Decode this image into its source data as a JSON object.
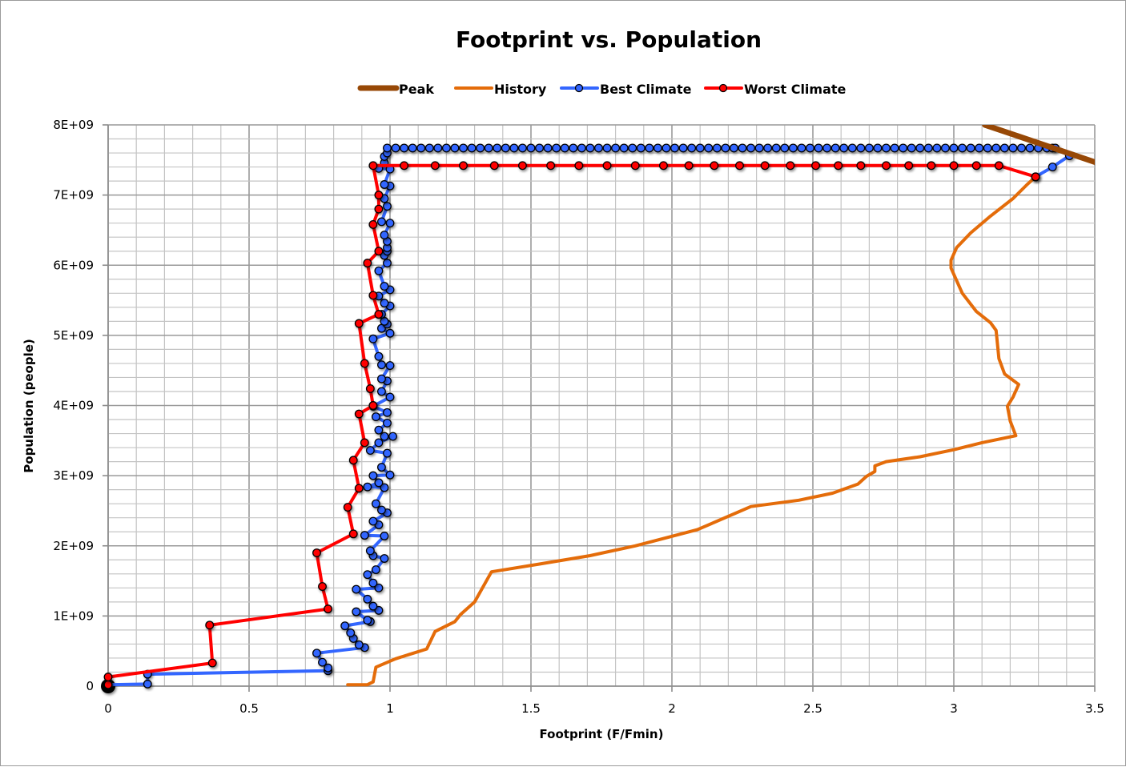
{
  "chart_data": {
    "type": "line",
    "title": "Footprint vs. Population",
    "xlabel": "Footprint (F/Fmin)",
    "ylabel": "Population (people)",
    "xlim": [
      0,
      3.5
    ],
    "ylim": [
      0,
      8000000000
    ],
    "x_ticks": [
      "0",
      "0.5",
      "1",
      "1.5",
      "2",
      "2.5",
      "3",
      "3.5"
    ],
    "y_ticks": [
      "0",
      "1E+09",
      "2E+09",
      "3E+09",
      "4E+09",
      "5E+09",
      "6E+09",
      "7E+09",
      "8E+09"
    ],
    "grid": true,
    "legend_position": "top",
    "colors": {
      "peak": "#974806",
      "history": "#E46C0A",
      "best": "#3366FF",
      "worst": "#FF0000",
      "grid_major": "#999999",
      "grid_minor": "#c4c4c4"
    },
    "series": [
      {
        "name": "Peak",
        "key": "peak",
        "marker": false,
        "points": [
          [
            3.11,
            8000000000.0
          ],
          [
            3.5,
            7470000000.0
          ]
        ]
      },
      {
        "name": "History",
        "key": "history",
        "marker": false,
        "points": [
          [
            0.85,
            20000000.0
          ],
          [
            0.92,
            20000000.0
          ],
          [
            0.94,
            60000000.0
          ],
          [
            0.95,
            270000000.0
          ],
          [
            1.02,
            390000000.0
          ],
          [
            1.13,
            530000000.0
          ],
          [
            1.16,
            780000000.0
          ],
          [
            1.23,
            920000000.0
          ],
          [
            1.25,
            1020000000.0
          ],
          [
            1.3,
            1200000000.0
          ],
          [
            1.36,
            1630000000.0
          ],
          [
            1.53,
            1740000000.0
          ],
          [
            1.71,
            1860000000.0
          ],
          [
            1.87,
            2000000000.0
          ],
          [
            2.09,
            2230000000.0
          ],
          [
            2.28,
            2560000000.0
          ],
          [
            2.45,
            2650000000.0
          ],
          [
            2.57,
            2750000000.0
          ],
          [
            2.66,
            2880000000.0
          ],
          [
            2.69,
            2990000000.0
          ],
          [
            2.72,
            3060000000.0
          ],
          [
            2.72,
            3140000000.0
          ],
          [
            2.76,
            3200000000.0
          ],
          [
            2.88,
            3270000000.0
          ],
          [
            3.0,
            3370000000.0
          ],
          [
            3.1,
            3470000000.0
          ],
          [
            3.22,
            3570000000.0
          ],
          [
            3.2,
            3780000000.0
          ],
          [
            3.19,
            3990000000.0
          ],
          [
            3.21,
            4120000000.0
          ],
          [
            3.23,
            4300000000.0
          ],
          [
            3.18,
            4450000000.0
          ],
          [
            3.16,
            4670000000.0
          ],
          [
            3.15,
            5070000000.0
          ],
          [
            3.13,
            5180000000.0
          ],
          [
            3.08,
            5340000000.0
          ],
          [
            3.03,
            5600000000.0
          ],
          [
            2.99,
            5960000000.0
          ],
          [
            2.99,
            6070000000.0
          ],
          [
            3.01,
            6250000000.0
          ],
          [
            3.06,
            6460000000.0
          ],
          [
            3.13,
            6700000000.0
          ],
          [
            3.21,
            6950000000.0
          ],
          [
            3.26,
            7150000000.0
          ],
          [
            3.29,
            7260000000.0
          ]
        ]
      },
      {
        "name": "Best Climate",
        "key": "best",
        "marker": true,
        "points": [
          [
            0.0,
            20000000.0
          ],
          [
            0.14,
            30000000.0
          ],
          [
            0.14,
            170000000.0
          ],
          [
            0.78,
            220000000.0
          ],
          [
            0.78,
            260000000.0
          ],
          [
            0.76,
            340000000.0
          ],
          [
            0.74,
            470000000.0
          ],
          [
            0.91,
            550000000.0
          ],
          [
            0.89,
            590000000.0
          ],
          [
            0.87,
            680000000.0
          ],
          [
            0.86,
            760000000.0
          ],
          [
            0.84,
            860000000.0
          ],
          [
            0.93,
            920000000.0
          ],
          [
            0.92,
            940000000.0
          ],
          [
            0.88,
            1060000000.0
          ],
          [
            0.96,
            1080000000.0
          ],
          [
            0.94,
            1140000000.0
          ],
          [
            0.92,
            1240000000.0
          ],
          [
            0.88,
            1380000000.0
          ],
          [
            0.96,
            1400000000.0
          ],
          [
            0.94,
            1470000000.0
          ],
          [
            0.92,
            1590000000.0
          ],
          [
            0.95,
            1660000000.0
          ],
          [
            0.98,
            1820000000.0
          ],
          [
            0.94,
            1860000000.0
          ],
          [
            0.93,
            1930000000.0
          ],
          [
            0.98,
            2140000000.0
          ],
          [
            0.91,
            2150000000.0
          ],
          [
            0.96,
            2300000000.0
          ],
          [
            0.94,
            2350000000.0
          ],
          [
            0.99,
            2470000000.0
          ],
          [
            0.97,
            2510000000.0
          ],
          [
            0.95,
            2600000000.0
          ],
          [
            0.98,
            2830000000.0
          ],
          [
            0.92,
            2840000000.0
          ],
          [
            0.96,
            2900000000.0
          ],
          [
            0.94,
            3000000000.0
          ],
          [
            1.0,
            3010000000.0
          ],
          [
            0.97,
            3120000000.0
          ],
          [
            0.99,
            3320000000.0
          ],
          [
            0.93,
            3360000000.0
          ],
          [
            0.96,
            3470000000.0
          ],
          [
            1.01,
            3560000000.0
          ],
          [
            0.98,
            3560000000.0
          ],
          [
            0.96,
            3650000000.0
          ],
          [
            0.99,
            3750000000.0
          ],
          [
            0.95,
            3840000000.0
          ],
          [
            0.99,
            3900000000.0
          ],
          [
            0.94,
            3990000000.0
          ],
          [
            1.0,
            4120000000.0
          ],
          [
            0.97,
            4200000000.0
          ],
          [
            0.99,
            4350000000.0
          ],
          [
            0.97,
            4380000000.0
          ],
          [
            1.0,
            4570000000.0
          ],
          [
            0.97,
            4580000000.0
          ],
          [
            0.96,
            4700000000.0
          ],
          [
            0.94,
            4950000000.0
          ],
          [
            1.0,
            5030000000.0
          ],
          [
            0.97,
            5100000000.0
          ],
          [
            0.99,
            5160000000.0
          ],
          [
            0.98,
            5200000000.0
          ],
          [
            0.97,
            5300000000.0
          ],
          [
            1.0,
            5420000000.0
          ],
          [
            0.98,
            5460000000.0
          ],
          [
            0.96,
            5560000000.0
          ],
          [
            1.0,
            5650000000.0
          ],
          [
            0.98,
            5700000000.0
          ],
          [
            0.96,
            5920000000.0
          ],
          [
            0.99,
            6030000000.0
          ],
          [
            0.98,
            6140000000.0
          ],
          [
            0.99,
            6200000000.0
          ],
          [
            0.99,
            6250000000.0
          ],
          [
            0.99,
            6340000000.0
          ],
          [
            0.98,
            6430000000.0
          ],
          [
            1.0,
            6600000000.0
          ],
          [
            0.97,
            6620000000.0
          ],
          [
            0.99,
            6840000000.0
          ],
          [
            0.98,
            6950000000.0
          ],
          [
            1.0,
            7130000000.0
          ],
          [
            0.98,
            7150000000.0
          ],
          [
            1.0,
            7370000000.0
          ],
          [
            0.96,
            7380000000.0
          ],
          [
            0.98,
            7460000000.0
          ],
          [
            0.98,
            7550000000.0
          ],
          [
            0.99,
            7600000000.0
          ],
          [
            0.99,
            7670000000.0
          ],
          [
            1.02,
            7670000000.0
          ],
          [
            1.05,
            7670000000.0
          ],
          [
            1.08,
            7670000000.0
          ],
          [
            1.11,
            7670000000.0
          ],
          [
            1.14,
            7670000000.0
          ],
          [
            1.17,
            7670000000.0
          ],
          [
            1.2,
            7670000000.0
          ],
          [
            1.23,
            7670000000.0
          ],
          [
            1.26,
            7670000000.0
          ],
          [
            1.29,
            7670000000.0
          ],
          [
            1.32,
            7670000000.0
          ],
          [
            1.35,
            7670000000.0
          ],
          [
            1.38,
            7670000000.0
          ],
          [
            1.41,
            7670000000.0
          ],
          [
            1.44,
            7670000000.0
          ],
          [
            1.47,
            7670000000.0
          ],
          [
            1.5,
            7670000000.0
          ],
          [
            1.53,
            7670000000.0
          ],
          [
            1.56,
            7670000000.0
          ],
          [
            1.59,
            7670000000.0
          ],
          [
            1.62,
            7670000000.0
          ],
          [
            1.65,
            7670000000.0
          ],
          [
            1.68,
            7670000000.0
          ],
          [
            1.71,
            7670000000.0
          ],
          [
            1.74,
            7670000000.0
          ],
          [
            1.77,
            7670000000.0
          ],
          [
            1.8,
            7670000000.0
          ],
          [
            1.83,
            7670000000.0
          ],
          [
            1.86,
            7670000000.0
          ],
          [
            1.89,
            7670000000.0
          ],
          [
            1.92,
            7670000000.0
          ],
          [
            1.95,
            7670000000.0
          ],
          [
            1.98,
            7670000000.0
          ],
          [
            2.01,
            7670000000.0
          ],
          [
            2.04,
            7670000000.0
          ],
          [
            2.07,
            7670000000.0
          ],
          [
            2.1,
            7670000000.0
          ],
          [
            2.13,
            7670000000.0
          ],
          [
            2.16,
            7670000000.0
          ],
          [
            2.19,
            7670000000.0
          ],
          [
            2.22,
            7670000000.0
          ],
          [
            2.25,
            7670000000.0
          ],
          [
            2.28,
            7670000000.0
          ],
          [
            2.31,
            7670000000.0
          ],
          [
            2.34,
            7670000000.0
          ],
          [
            2.37,
            7670000000.0
          ],
          [
            2.4,
            7670000000.0
          ],
          [
            2.43,
            7670000000.0
          ],
          [
            2.46,
            7670000000.0
          ],
          [
            2.49,
            7670000000.0
          ],
          [
            2.52,
            7670000000.0
          ],
          [
            2.55,
            7670000000.0
          ],
          [
            2.58,
            7670000000.0
          ],
          [
            2.61,
            7670000000.0
          ],
          [
            2.64,
            7670000000.0
          ],
          [
            2.67,
            7670000000.0
          ],
          [
            2.7,
            7670000000.0
          ],
          [
            2.73,
            7670000000.0
          ],
          [
            2.76,
            7670000000.0
          ],
          [
            2.79,
            7670000000.0
          ],
          [
            2.82,
            7670000000.0
          ],
          [
            2.85,
            7670000000.0
          ],
          [
            2.88,
            7670000000.0
          ],
          [
            2.91,
            7670000000.0
          ],
          [
            2.94,
            7670000000.0
          ],
          [
            2.97,
            7670000000.0
          ],
          [
            3.0,
            7670000000.0
          ],
          [
            3.03,
            7670000000.0
          ],
          [
            3.06,
            7670000000.0
          ],
          [
            3.09,
            7670000000.0
          ],
          [
            3.12,
            7670000000.0
          ],
          [
            3.15,
            7670000000.0
          ],
          [
            3.18,
            7670000000.0
          ],
          [
            3.21,
            7670000000.0
          ],
          [
            3.24,
            7670000000.0
          ],
          [
            3.27,
            7670000000.0
          ],
          [
            3.3,
            7670000000.0
          ],
          [
            3.33,
            7670000000.0
          ],
          [
            3.35,
            7670000000.0
          ],
          [
            3.36,
            7670000000.0
          ],
          [
            3.41,
            7560000000.0
          ],
          [
            3.35,
            7400000000.0
          ],
          [
            3.29,
            7260000000.0
          ]
        ]
      },
      {
        "name": "Worst Climate",
        "key": "worst",
        "marker": true,
        "points": [
          [
            0.0,
            20000000.0
          ],
          [
            0.0,
            130000000.0
          ],
          [
            0.37,
            330000000.0
          ],
          [
            0.36,
            870000000.0
          ],
          [
            0.78,
            1100000000.0
          ],
          [
            0.76,
            1420000000.0
          ],
          [
            0.74,
            1900000000.0
          ],
          [
            0.87,
            2170000000.0
          ],
          [
            0.85,
            2550000000.0
          ],
          [
            0.89,
            2820000000.0
          ],
          [
            0.87,
            3220000000.0
          ],
          [
            0.91,
            3470000000.0
          ],
          [
            0.89,
            3880000000.0
          ],
          [
            0.94,
            4000000000.0
          ],
          [
            0.93,
            4240000000.0
          ],
          [
            0.91,
            4600000000.0
          ],
          [
            0.89,
            5170000000.0
          ],
          [
            0.96,
            5300000000.0
          ],
          [
            0.94,
            5570000000.0
          ],
          [
            0.92,
            6030000000.0
          ],
          [
            0.96,
            6200000000.0
          ],
          [
            0.94,
            6580000000.0
          ],
          [
            0.96,
            6800000000.0
          ],
          [
            0.96,
            7000000000.0
          ],
          [
            0.94,
            7420000000.0
          ],
          [
            1.05,
            7420000000.0
          ],
          [
            1.16,
            7420000000.0
          ],
          [
            1.26,
            7420000000.0
          ],
          [
            1.37,
            7420000000.0
          ],
          [
            1.47,
            7420000000.0
          ],
          [
            1.57,
            7420000000.0
          ],
          [
            1.67,
            7420000000.0
          ],
          [
            1.77,
            7420000000.0
          ],
          [
            1.87,
            7420000000.0
          ],
          [
            1.97,
            7420000000.0
          ],
          [
            2.06,
            7420000000.0
          ],
          [
            2.15,
            7420000000.0
          ],
          [
            2.24,
            7420000000.0
          ],
          [
            2.33,
            7420000000.0
          ],
          [
            2.42,
            7420000000.0
          ],
          [
            2.51,
            7420000000.0
          ],
          [
            2.59,
            7420000000.0
          ],
          [
            2.67,
            7420000000.0
          ],
          [
            2.76,
            7420000000.0
          ],
          [
            2.84,
            7420000000.0
          ],
          [
            2.92,
            7420000000.0
          ],
          [
            3.0,
            7420000000.0
          ],
          [
            3.08,
            7420000000.0
          ],
          [
            3.16,
            7420000000.0
          ],
          [
            3.29,
            7260000000.0
          ]
        ]
      }
    ]
  },
  "legend": {
    "items": [
      {
        "label": "Peak",
        "key": "peak"
      },
      {
        "label": "History",
        "key": "history"
      },
      {
        "label": "Best Climate",
        "key": "best"
      },
      {
        "label": "Worst Climate",
        "key": "worst"
      }
    ]
  }
}
